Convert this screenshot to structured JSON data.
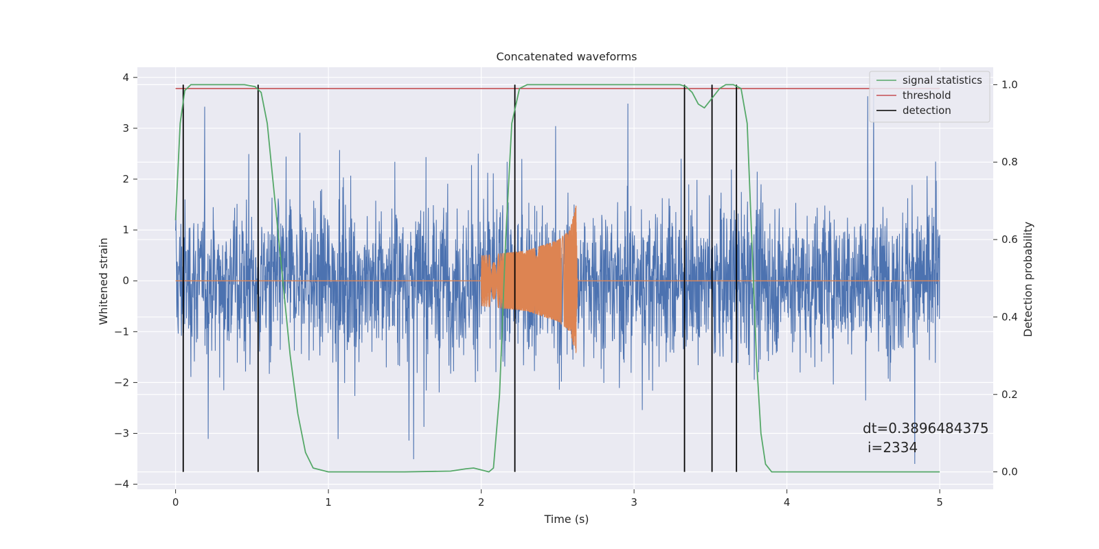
{
  "chart_data": {
    "type": "line",
    "title": "Concatenated waveforms",
    "xlabel": "Time (s)",
    "ylabel": "Whitened strain",
    "y2label": "Detection probability",
    "xlim": [
      -0.25,
      5.35
    ],
    "ylim": [
      -4.1,
      4.2
    ],
    "y2lim": [
      -0.045,
      1.045
    ],
    "grid": true,
    "legend_position": "top-right",
    "x_ticks": [
      0,
      1,
      2,
      3,
      4,
      5
    ],
    "x_tick_labels": [
      "0",
      "1",
      "2",
      "3",
      "4",
      "5"
    ],
    "y_ticks": [
      4,
      3,
      2,
      1,
      0,
      -1,
      -2,
      -3,
      -4
    ],
    "y_tick_labels": [
      "4",
      "3",
      "2",
      "1",
      "0",
      "−1",
      "−2",
      "−3",
      "−4"
    ],
    "y2_ticks": [
      1.0,
      0.8,
      0.6,
      0.4,
      0.2,
      0.0
    ],
    "y2_tick_labels": [
      "1.0",
      "0.8",
      "0.6",
      "0.4",
      "0.2",
      "0.0"
    ],
    "annotation": [
      "dt=0.3896484375",
      "i=2334"
    ],
    "series": [
      {
        "name": "signal statistics",
        "axis": "right",
        "color": "#55a868",
        "x": [
          0.0,
          0.03,
          0.06,
          0.1,
          0.2,
          0.45,
          0.52,
          0.56,
          0.6,
          0.65,
          0.7,
          0.75,
          0.8,
          0.85,
          0.9,
          1.0,
          1.5,
          1.8,
          1.9,
          1.95,
          2.0,
          2.05,
          2.08,
          2.12,
          2.16,
          2.2,
          2.25,
          2.3,
          2.4,
          3.3,
          3.34,
          3.38,
          3.42,
          3.46,
          3.52,
          3.56,
          3.6,
          3.65,
          3.7,
          3.74,
          3.77,
          3.8,
          3.83,
          3.86,
          3.9,
          4.2,
          5.0
        ],
        "values": [
          0.65,
          0.9,
          0.985,
          1.0,
          1.0,
          1.0,
          0.995,
          0.98,
          0.9,
          0.7,
          0.5,
          0.3,
          0.15,
          0.05,
          0.01,
          0.0,
          0.0,
          0.002,
          0.008,
          0.01,
          0.005,
          0.0,
          0.01,
          0.2,
          0.6,
          0.9,
          0.99,
          1.0,
          1.0,
          1.0,
          0.995,
          0.98,
          0.95,
          0.94,
          0.97,
          0.99,
          1.0,
          1.0,
          0.99,
          0.9,
          0.6,
          0.3,
          0.1,
          0.02,
          0.0,
          0.0,
          0.0
        ]
      },
      {
        "name": "threshold",
        "axis": "right",
        "color": "#c44e52",
        "x": [
          0.0,
          5.0
        ],
        "values": [
          0.99,
          0.99
        ]
      },
      {
        "name": "detection",
        "axis": "right",
        "color": "#000000",
        "type": "vlines",
        "x": [
          0.05,
          0.54,
          2.22,
          3.33,
          3.51,
          3.67
        ],
        "ymin": 0.0,
        "ymax": 1.0
      },
      {
        "name": "",
        "axis": "left",
        "color": "#4c72b0",
        "description": "whitened strain noise, dense random series spanning 0–5 s",
        "x_range": [
          0.0,
          5.0
        ],
        "amplitude": [
          -3.6,
          3.8
        ]
      },
      {
        "name": "",
        "axis": "left",
        "color": "#dd8452",
        "description": "injected chirp waveform",
        "x_range": [
          2.0,
          2.63
        ],
        "envelope": [
          [
            2.0,
            0.5
          ],
          [
            2.3,
            0.6
          ],
          [
            2.5,
            0.8
          ],
          [
            2.58,
            1.0
          ],
          [
            2.62,
            1.5
          ],
          [
            2.63,
            0.0
          ]
        ]
      }
    ]
  }
}
